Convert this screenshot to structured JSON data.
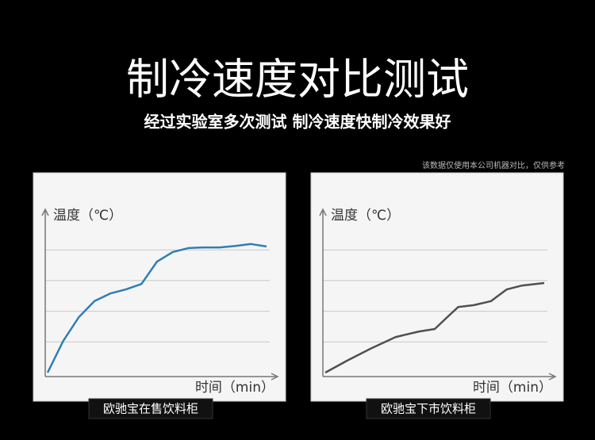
{
  "header": {
    "title": "制冷速度对比测试",
    "subtitle": "经过实验室多次测试 制冷速度快制冷效果好",
    "note": "该数据仅使用本公司机器对比，仅供参考"
  },
  "chart_data": [
    {
      "type": "line",
      "caption": "欧驰宝在售饮料柜",
      "y_label": "温度（℃）",
      "x_label": "时间（min）",
      "color": "#2f7fb2",
      "x": [
        0,
        1,
        2,
        3,
        4,
        5,
        6,
        7,
        8,
        9,
        10,
        11,
        12,
        13,
        14
      ],
      "values": [
        0,
        1.03,
        1.81,
        2.33,
        2.58,
        2.71,
        2.89,
        3.62,
        3.93,
        4.06,
        4.08,
        4.08,
        4.13,
        4.19,
        4.11
      ],
      "xlim": [
        0,
        14
      ],
      "ylim": [
        0,
        5
      ],
      "yticks": [
        1,
        2,
        3,
        4
      ],
      "grid": true
    },
    {
      "type": "line",
      "caption": "欧驰宝下市饮料柜",
      "y_label": "温度（℃）",
      "x_label": "时间（min）",
      "color": "#505050",
      "x": [
        0,
        1.4,
        2.9,
        4.5,
        6,
        7,
        7.8,
        8.5,
        9.5,
        10.6,
        11.6,
        12.6,
        14
      ],
      "values": [
        0,
        0.39,
        0.78,
        1.16,
        1.34,
        1.42,
        1.81,
        2.14,
        2.2,
        2.33,
        2.71,
        2.84,
        2.92
      ],
      "xlim": [
        0,
        14
      ],
      "ylim": [
        0,
        5
      ],
      "yticks": [
        1,
        2,
        3,
        4
      ],
      "grid": true
    }
  ]
}
